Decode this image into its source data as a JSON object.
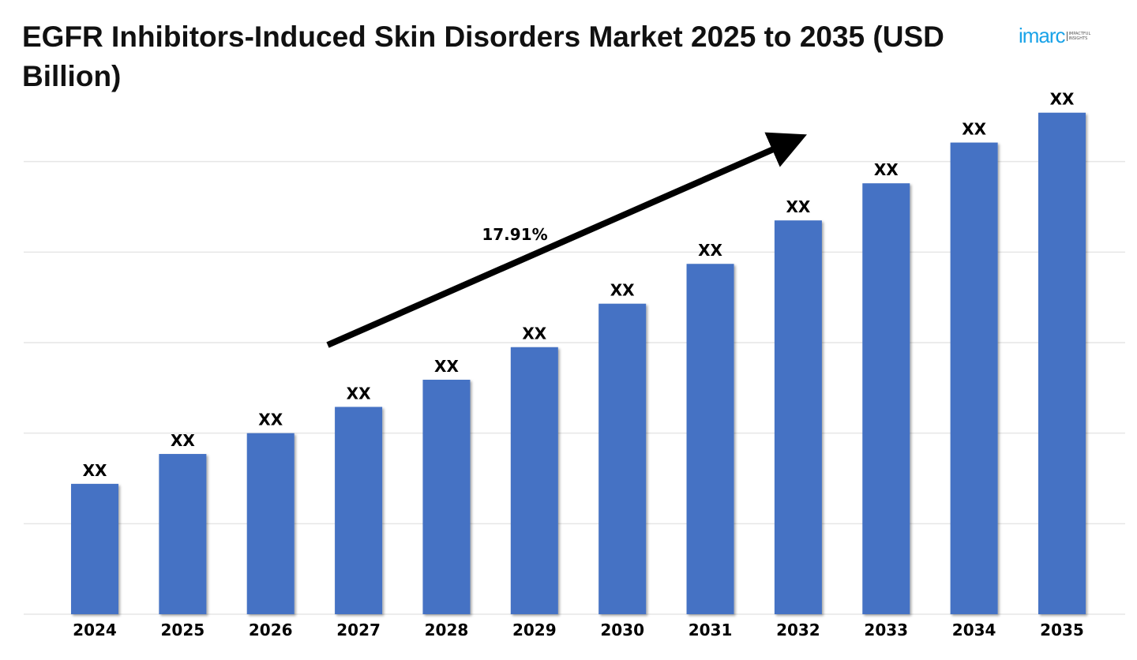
{
  "chart_data": {
    "type": "bar",
    "title": "EGFR Inhibitors-Induced Skin Disorders Market 2025 to 2035 (USD Billion)",
    "xlabel": "",
    "ylabel": "",
    "categories": [
      "2024",
      "2025",
      "2026",
      "2027",
      "2028",
      "2029",
      "2030",
      "2031",
      "2032",
      "2033",
      "2034",
      "2035"
    ],
    "values": [
      1.44,
      1.77,
      2.0,
      2.29,
      2.59,
      2.95,
      3.43,
      3.87,
      4.35,
      4.76,
      5.21,
      5.54
    ],
    "data_labels": [
      "XX",
      "XX",
      "XX",
      "XX",
      "XX",
      "XX",
      "XX",
      "XX",
      "XX",
      "XX",
      "XX",
      "XX"
    ],
    "ylim": [
      0,
      6
    ],
    "grid": true,
    "annotation": "17.91%",
    "bar_color": "#4472c4"
  },
  "logo": {
    "text": "imarc",
    "tagline": "IMPACTFUL INSIGHTS"
  }
}
